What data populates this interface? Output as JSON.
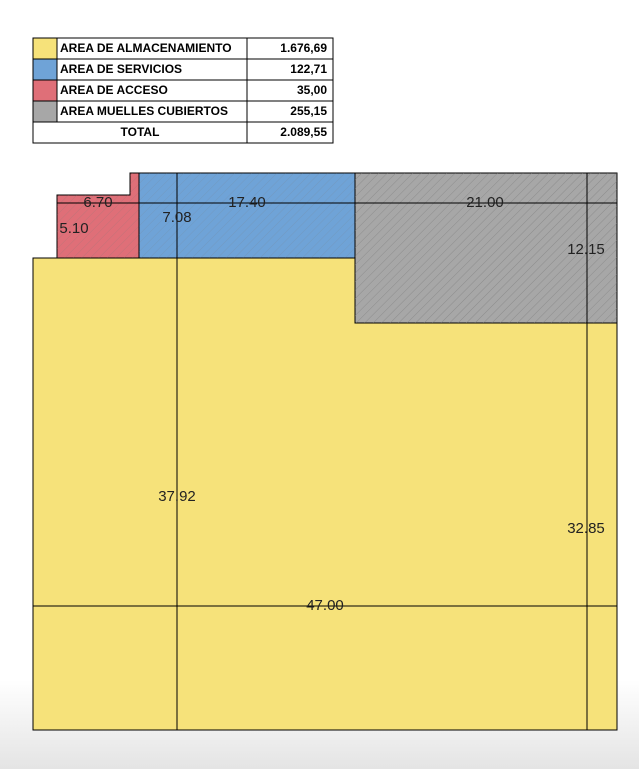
{
  "legend": {
    "rows": [
      {
        "name": "AREA DE ALMACENAMIENTO",
        "area": "1.676,69"
      },
      {
        "name": "AREA DE SERVICIOS",
        "area": "122,71"
      },
      {
        "name": "AREA DE ACCESO",
        "area": "35,00"
      },
      {
        "name": "AREA MUELLES CUBIERTOS",
        "area": "255,15"
      }
    ],
    "total": {
      "label": "TOTAL",
      "area": "2.089,55"
    }
  },
  "plan": {
    "dimensions": [
      "6.70",
      "17.40",
      "21.00",
      "5.10",
      "7.08",
      "12.15",
      "37.92",
      "32.85",
      "47.00"
    ]
  }
}
